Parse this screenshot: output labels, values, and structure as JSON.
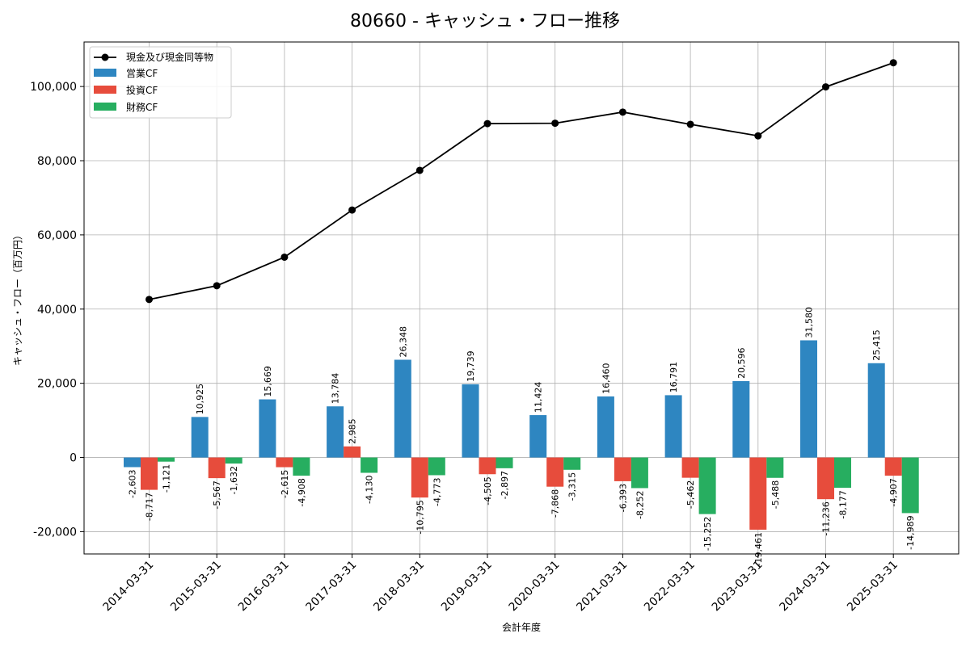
{
  "chart_data": {
    "type": "bar",
    "title": "80660 - キャッシュ・フロー推移",
    "xlabel": "会計年度",
    "ylabel": "キャッシュ・フロー（百万円）",
    "ylim": [
      -26000,
      112000
    ],
    "yticks": [
      -20000,
      0,
      20000,
      40000,
      60000,
      80000,
      100000
    ],
    "ytick_labels": [
      "-20,000",
      "0",
      "20,000",
      "40,000",
      "60,000",
      "80,000",
      "100,000"
    ],
    "grid": true,
    "legend_position": "top-left",
    "categories": [
      "2014-03-31",
      "2015-03-31",
      "2016-03-31",
      "2017-03-31",
      "2018-03-31",
      "2019-03-31",
      "2020-03-31",
      "2021-03-31",
      "2022-03-31",
      "2023-03-31",
      "2024-03-31",
      "2025-03-31"
    ],
    "series": [
      {
        "name": "営業CF",
        "kind": "bar",
        "color": "#2e86c1",
        "values": [
          -2603,
          10925,
          15669,
          13784,
          26348,
          19739,
          11424,
          16460,
          16791,
          20596,
          31580,
          25415
        ],
        "labels": [
          "-2,603",
          "10,925",
          "15,669",
          "13,784",
          "26,348",
          "19,739",
          "11,424",
          "16,460",
          "16,791",
          "20,596",
          "31,580",
          "25,415"
        ]
      },
      {
        "name": "投資CF",
        "kind": "bar",
        "color": "#e74c3c",
        "values": [
          -8717,
          -5567,
          -2615,
          2985,
          -10795,
          -4505,
          -7868,
          -6393,
          -5462,
          -19461,
          -11236,
          -4907
        ],
        "labels": [
          "-8,717",
          "-5,567",
          "-2,615",
          "2,985",
          "-10,795",
          "-4,505",
          "-7,868",
          "-6,393",
          "-5,462",
          "-19,461",
          "-11,236",
          "-4,907"
        ]
      },
      {
        "name": "財務CF",
        "kind": "bar",
        "color": "#27ae60",
        "values": [
          -1121,
          -1632,
          -4908,
          -4130,
          -4773,
          -2897,
          -3315,
          -8252,
          -15252,
          -5488,
          -8177,
          -14989
        ],
        "labels": [
          "-1,121",
          "-1,632",
          "-4,908",
          "-4,130",
          "-4,773",
          "-2,897",
          "-3,315",
          "-8,252",
          "-15,252",
          "-5,488",
          "-8,177",
          "-14,989"
        ]
      },
      {
        "name": "現金及び現金同等物",
        "kind": "line",
        "color": "#000000",
        "values": [
          42600,
          46300,
          54000,
          66700,
          77400,
          90000,
          90100,
          93100,
          89800,
          86700,
          99900,
          106400
        ]
      }
    ]
  }
}
